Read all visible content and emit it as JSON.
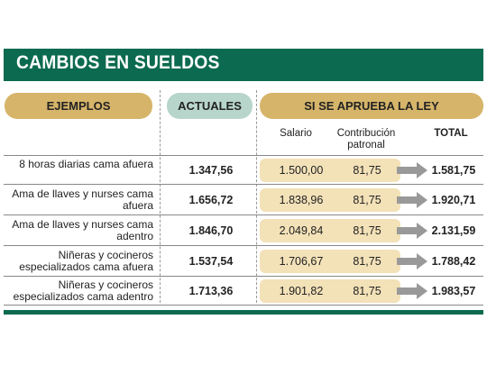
{
  "title": "CAMBIOS EN SUELDOS",
  "headers": {
    "ejemplos": "EJEMPLOS",
    "actuales": "ACTUALES",
    "si_se_aprueba": "SI SE APRUEBA LA LEY"
  },
  "subheaders": {
    "salario": "Salario",
    "contribucion": "Contribución patronal",
    "total": "TOTAL"
  },
  "rows": [
    {
      "label": "8 horas diarias cama afuera",
      "actual": "1.347,56",
      "salario": "1.500,00",
      "contribucion": "81,75",
      "total": "1.581,75"
    },
    {
      "label": "Ama de llaves y nurses cama afuera",
      "actual": "1.656,72",
      "salario": "1.838,96",
      "contribucion": "81,75",
      "total": "1.920,71"
    },
    {
      "label": "Ama de llaves y nurses cama adentro",
      "actual": "1.846,70",
      "salario": "2.049,84",
      "contribucion": "81,75",
      "total": "2.131,59"
    },
    {
      "label": "Niñeras y cocineros especializados cama afuera",
      "actual": "1.537,54",
      "salario": "1.706,67",
      "contribucion": "81,75",
      "total": "1.788,42"
    },
    {
      "label": "Niñeras y cocineros especializados cama adentro",
      "actual": "1.713,36",
      "salario": "1.901,82",
      "contribucion": "81,75",
      "total": "1.983,57"
    }
  ],
  "colors": {
    "header_green": "#0b6a4f",
    "gold": "#d6b56a",
    "mint": "#b8d5cc",
    "band": "#f3e1b8",
    "arrow": "#999999"
  },
  "icons": {
    "arrow": "right-arrow-icon"
  }
}
